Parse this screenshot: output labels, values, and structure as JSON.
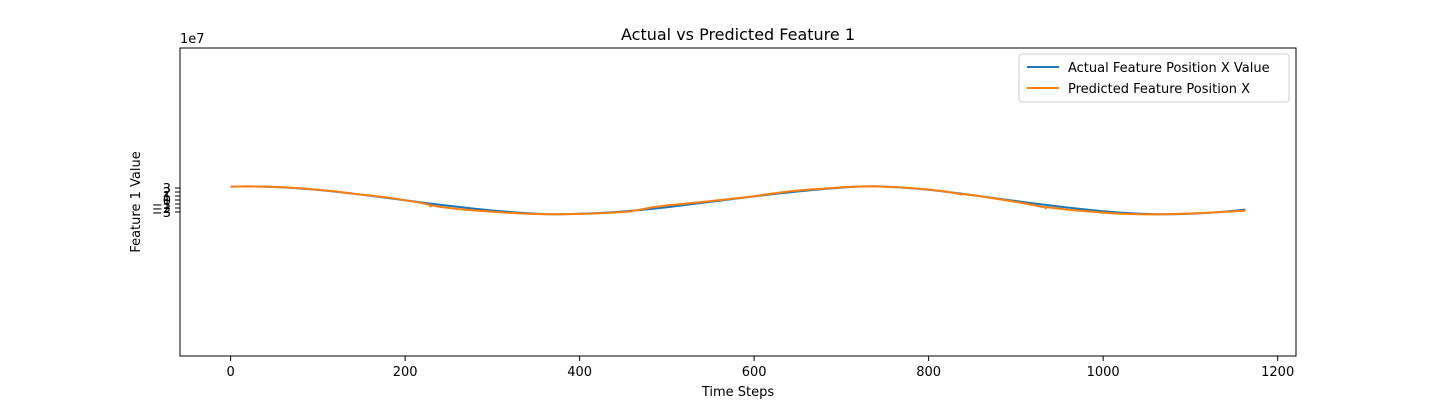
{
  "chart_data": {
    "type": "line",
    "title": "Actual vs Predicted Feature 1",
    "xlabel": "Time Steps",
    "ylabel": "Feature 1 Value",
    "y_offset_label": "1e7",
    "y_scale": 10000000,
    "xlim": [
      -58,
      1221
    ],
    "ylim": [
      -39.0,
      38.0
    ],
    "x_ticks": [
      {
        "value": 0,
        "label": "0"
      },
      {
        "value": 200,
        "label": "200"
      },
      {
        "value": 400,
        "label": "400"
      },
      {
        "value": 600,
        "label": "600"
      },
      {
        "value": 800,
        "label": "800"
      },
      {
        "value": 1000,
        "label": "1000"
      },
      {
        "value": 1200,
        "label": "1200"
      }
    ],
    "y_ticks": [
      {
        "value": -3,
        "label": "−3"
      },
      {
        "value": -2,
        "label": "−2"
      },
      {
        "value": -1,
        "label": "−1"
      },
      {
        "value": 0,
        "label": "0"
      },
      {
        "value": 1,
        "label": "1"
      },
      {
        "value": 2,
        "label": "2"
      },
      {
        "value": 3,
        "label": "3"
      }
    ],
    "grid": false,
    "legend_position": "top-right",
    "series": [
      {
        "name": "Actual Feature Position X Value",
        "color": "#1f77b4",
        "x": [
          0,
          20,
          40,
          60,
          80,
          100,
          120,
          140,
          160,
          180,
          200,
          220,
          240,
          260,
          280,
          300,
          320,
          340,
          360,
          370,
          380,
          400,
          420,
          440,
          460,
          480,
          500,
          520,
          540,
          560,
          580,
          600,
          620,
          640,
          660,
          680,
          700,
          720,
          740,
          760,
          780,
          800,
          820,
          840,
          860,
          880,
          900,
          920,
          940,
          960,
          980,
          1000,
          1020,
          1040,
          1060,
          1070,
          1080,
          1100,
          1120,
          1140,
          1163
        ],
        "y": [
          3.35,
          3.4,
          3.33,
          3.15,
          2.88,
          2.53,
          2.1,
          1.6,
          1.06,
          0.5,
          -0.07,
          -0.66,
          -1.18,
          -1.7,
          -2.17,
          -2.62,
          -3.0,
          -3.3,
          -3.52,
          -3.56,
          -3.55,
          -3.45,
          -3.28,
          -3.02,
          -2.7,
          -2.28,
          -1.8,
          -1.27,
          -0.73,
          -0.18,
          0.37,
          0.91,
          1.42,
          1.9,
          2.34,
          2.74,
          3.1,
          3.38,
          3.45,
          3.25,
          2.96,
          2.55,
          2.05,
          1.5,
          0.93,
          0.33,
          -0.25,
          -0.84,
          -1.38,
          -1.9,
          -2.38,
          -2.8,
          -3.15,
          -3.4,
          -3.54,
          -3.56,
          -3.55,
          -3.45,
          -3.22,
          -2.9,
          -2.4
        ]
      },
      {
        "name": "Predicted Feature Position X",
        "color": "#ff7f0e",
        "x": [
          0,
          20,
          40,
          60,
          80,
          100,
          120,
          135,
          137,
          140,
          160,
          180,
          200,
          220,
          228,
          229,
          231,
          235,
          240,
          260,
          280,
          300,
          320,
          340,
          360,
          370,
          380,
          400,
          420,
          440,
          460,
          462,
          465,
          480,
          500,
          520,
          540,
          560,
          580,
          600,
          620,
          640,
          660,
          680,
          700,
          720,
          740,
          760,
          780,
          800,
          820,
          835,
          837,
          840,
          860,
          880,
          900,
          920,
          930,
          933,
          934,
          936,
          940,
          960,
          980,
          1000,
          1020,
          1040,
          1060,
          1070,
          1080,
          1100,
          1120,
          1140,
          1163
        ],
        "y": [
          3.35,
          3.4,
          3.35,
          3.18,
          2.92,
          2.58,
          2.15,
          1.72,
          1.62,
          1.58,
          1.12,
          0.62,
          -0.07,
          -0.8,
          -1.22,
          -1.6,
          -1.38,
          -1.55,
          -1.72,
          -2.25,
          -2.62,
          -2.95,
          -3.22,
          -3.43,
          -3.55,
          -3.57,
          -3.55,
          -3.48,
          -3.35,
          -3.12,
          -2.85,
          -2.55,
          -2.6,
          -1.95,
          -1.35,
          -0.95,
          -0.5,
          -0.02,
          0.45,
          0.95,
          1.6,
          2.15,
          2.55,
          2.85,
          3.18,
          3.38,
          3.4,
          3.22,
          2.98,
          2.62,
          2.1,
          1.52,
          1.4,
          1.48,
          0.9,
          0.22,
          -0.48,
          -1.25,
          -1.72,
          -1.76,
          -2.1,
          -1.75,
          -1.9,
          -2.42,
          -2.82,
          -3.15,
          -3.42,
          -3.57,
          -3.6,
          -3.58,
          -3.5,
          -3.38,
          -3.2,
          -2.95,
          -2.7
        ]
      }
    ]
  }
}
